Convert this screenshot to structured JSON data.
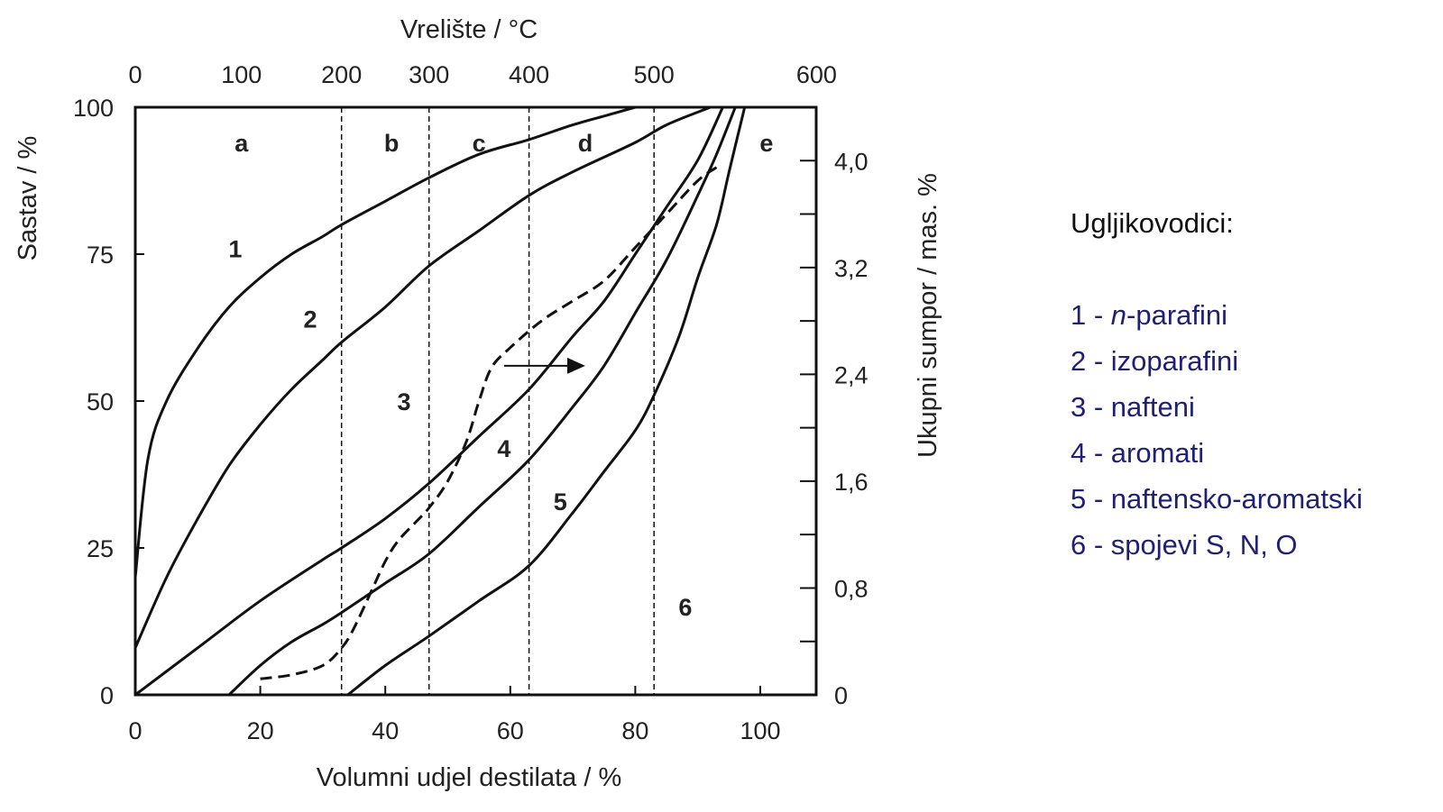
{
  "chart_data": {
    "type": "line",
    "title": "",
    "xlabel": "Volumni udjel destilata / %",
    "xlim": [
      0,
      100
    ],
    "x_ticks": [
      "0",
      "20",
      "40",
      "60",
      "80",
      "100"
    ],
    "ylabel": "Sastav / %",
    "ylim": [
      0,
      100
    ],
    "y_ticks": [
      "0",
      "25",
      "50",
      "75",
      "100"
    ],
    "top_axis": {
      "label": "Vrelište / °C",
      "ticks": [
        {
          "label": "0",
          "x": 0
        },
        {
          "label": "100",
          "x": 17
        },
        {
          "label": "200",
          "x": 33
        },
        {
          "label": "300",
          "x": 47
        },
        {
          "label": "400",
          "x": 63
        },
        {
          "label": "500",
          "x": 83
        },
        {
          "label": "600",
          "x": 109
        }
      ]
    },
    "right_axis": {
      "label": "Ukupni sumpor / mas. %",
      "ylim": [
        0,
        4.4
      ],
      "ticks": [
        "0",
        "0,8",
        "1,6",
        "2,4",
        "3,2",
        "4,0"
      ]
    },
    "dividers_x": [
      33,
      47,
      63,
      83
    ],
    "grid": false,
    "regions": [
      {
        "label": "a",
        "x": 17,
        "y": 94
      },
      {
        "label": "b",
        "x": 41,
        "y": 94
      },
      {
        "label": "c",
        "x": 55,
        "y": 94
      },
      {
        "label": "d",
        "x": 72,
        "y": 94
      },
      {
        "label": "e",
        "x": 101,
        "y": 94
      }
    ],
    "series": [
      {
        "x": [
          0,
          2,
          5,
          10,
          15,
          20,
          25,
          30,
          33,
          40,
          47,
          55,
          63,
          70,
          75,
          80
        ],
        "y": [
          20,
          40,
          50,
          59,
          66,
          71,
          75,
          78,
          80,
          84,
          88,
          92,
          94.5,
          97,
          98.5,
          100
        ]
      },
      {
        "x": [
          0,
          5,
          10,
          15,
          20,
          25,
          30,
          33,
          40,
          47,
          55,
          63,
          70,
          80,
          85,
          92
        ],
        "y": [
          8,
          20,
          30,
          39,
          46,
          52,
          57,
          60,
          66,
          73,
          79,
          85,
          89,
          94,
          97,
          100
        ]
      },
      {
        "x": [
          0,
          10,
          20,
          30,
          33,
          40,
          47,
          55,
          63,
          70,
          75,
          80,
          85,
          90,
          94
        ],
        "y": [
          0,
          8,
          16,
          23,
          25,
          30,
          36,
          44,
          52,
          61,
          67,
          75,
          83,
          91,
          100
        ]
      },
      {
        "x": [
          15,
          20,
          25,
          30,
          33,
          40,
          47,
          55,
          63,
          70,
          75,
          80,
          85,
          90,
          93,
          96
        ],
        "y": [
          0,
          5,
          9,
          12,
          14,
          19,
          24,
          32,
          40,
          49,
          56,
          65,
          74,
          85,
          92,
          100
        ]
      },
      {
        "x": [
          34,
          40,
          47,
          55,
          63,
          70,
          75,
          80,
          83,
          87,
          90,
          93,
          95,
          97.5
        ],
        "y": [
          0,
          5,
          10,
          16,
          22,
          31,
          38,
          45,
          51,
          61,
          71,
          80,
          89,
          100
        ]
      }
    ],
    "sulfur_series": {
      "x": [
        20,
        25,
        30,
        33,
        35,
        38,
        40,
        42,
        45,
        47,
        50,
        53,
        55,
        57,
        60,
        65,
        70,
        75,
        80,
        85,
        90,
        93
      ],
      "y_sulfur": [
        0.12,
        0.15,
        0.22,
        0.35,
        0.5,
        0.8,
        1.0,
        1.15,
        1.3,
        1.4,
        1.6,
        1.9,
        2.2,
        2.45,
        2.6,
        2.8,
        2.95,
        3.1,
        3.35,
        3.6,
        3.85,
        3.95
      ]
    },
    "annotations": [
      {
        "type": "arrow",
        "from": {
          "x": 59,
          "y": 56
        },
        "to": {
          "x": 72,
          "y": 56
        }
      },
      {
        "type": "label",
        "text": "1",
        "x": 16,
        "y": 76
      },
      {
        "type": "label",
        "text": "2",
        "x": 28,
        "y": 64
      },
      {
        "type": "label",
        "text": "3",
        "x": 43,
        "y": 50
      },
      {
        "type": "label",
        "text": "4",
        "x": 59,
        "y": 42
      },
      {
        "type": "label",
        "text": "5",
        "x": 68,
        "y": 33
      },
      {
        "type": "label",
        "text": "6",
        "x": 88,
        "y": 15
      }
    ]
  },
  "legend": {
    "title": "Ugljikovodici:",
    "items": [
      {
        "num": "1 - ",
        "italic": "n",
        "text": "-parafini"
      },
      {
        "num": "2 - ",
        "italic": "",
        "text": "izoparafini"
      },
      {
        "num": "3 - ",
        "italic": "",
        "text": "nafteni"
      },
      {
        "num": "4 - ",
        "italic": "",
        "text": "aromati"
      },
      {
        "num": "5 - ",
        "italic": "",
        "text": "naftensko-aromatski"
      },
      {
        "num": "6 - ",
        "italic": "",
        "text": "spojevi S, N, O"
      }
    ],
    "color": "#1f1f78"
  }
}
